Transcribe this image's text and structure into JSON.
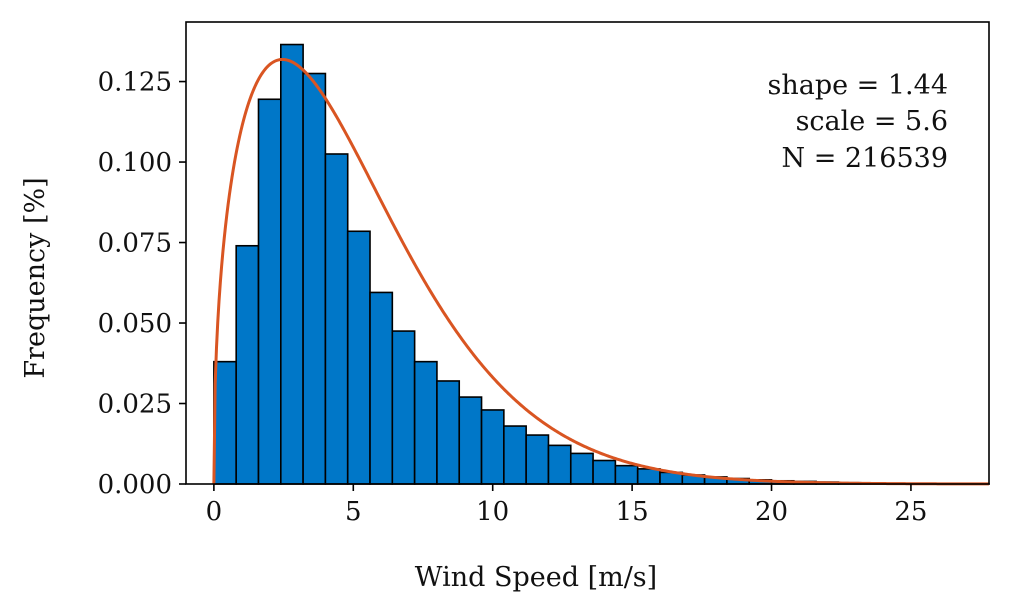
{
  "chart_data": {
    "type": "bar",
    "xlabel": "Wind Speed [m/s]",
    "ylabel": "Frequency [%]",
    "xlim": [
      -1,
      27.8
    ],
    "ylim": [
      0,
      0.1435
    ],
    "xticks": [
      0,
      5,
      10,
      15,
      20,
      25
    ],
    "xtick_labels": [
      "0",
      "5",
      "10",
      "15",
      "20",
      "25"
    ],
    "yticks": [
      0.0,
      0.025,
      0.05,
      0.075,
      0.1,
      0.125
    ],
    "ytick_labels": [
      "0.000",
      "0.025",
      "0.050",
      "0.075",
      "0.100",
      "0.125"
    ],
    "grid": false,
    "bin_width": 0.8,
    "bin_start": 0,
    "bar_color": "#0077c8",
    "bar_edge_color": "#000000",
    "histogram": [
      0.038,
      0.074,
      0.1195,
      0.1365,
      0.1275,
      0.1025,
      0.0785,
      0.0595,
      0.0475,
      0.038,
      0.032,
      0.027,
      0.023,
      0.018,
      0.0152,
      0.012,
      0.0095,
      0.0073,
      0.0057,
      0.0047,
      0.0036,
      0.0028,
      0.0022,
      0.0017,
      0.0013,
      0.001,
      0.0008,
      0.0006,
      0.0004,
      0.0003,
      0.0002,
      0.00015,
      0.0001,
      8e-05,
      6e-05
    ],
    "fit_curve": {
      "type": "weibull",
      "shape": 1.44,
      "scale": 5.6,
      "color": "#d95522"
    },
    "annotation": [
      "shape = 1.44",
      "scale = 5.6",
      "N = 216539"
    ]
  }
}
